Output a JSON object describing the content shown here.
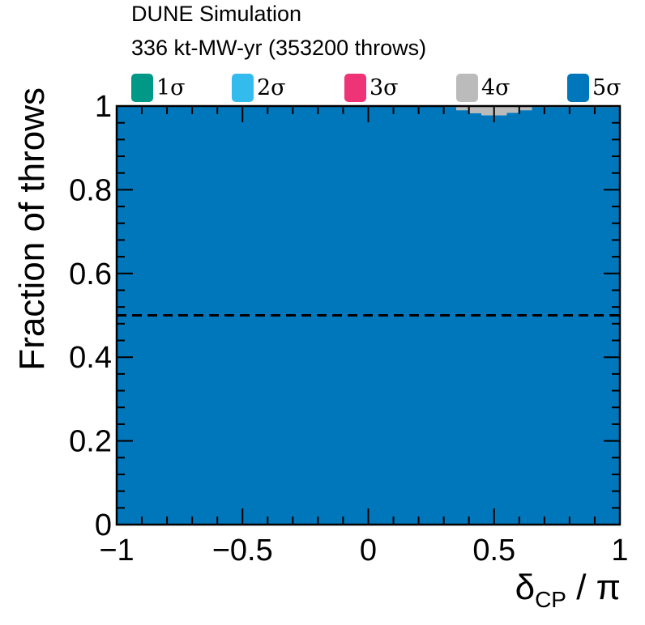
{
  "chart_data": {
    "type": "area",
    "header": {
      "experiment": "DUNE Simulation",
      "exposure": "336 kt-MW-yr (353200 throws)"
    },
    "xlabel": {
      "main": "δ",
      "sub": "CP",
      "suffix": " / π"
    },
    "ylabel": "Fraction of throws",
    "xlim": [
      -1,
      1
    ],
    "ylim": [
      0,
      1
    ],
    "xticks": [
      {
        "value": -1,
        "label": "−1"
      },
      {
        "value": -0.5,
        "label": "−0.5"
      },
      {
        "value": 0,
        "label": "0"
      },
      {
        "value": 0.5,
        "label": "0.5"
      },
      {
        "value": 1,
        "label": "1"
      }
    ],
    "yticks": [
      {
        "value": 0,
        "label": "0"
      },
      {
        "value": 0.2,
        "label": "0.2"
      },
      {
        "value": 0.4,
        "label": "0.4"
      },
      {
        "value": 0.6,
        "label": "0.6"
      },
      {
        "value": 0.8,
        "label": "0.8"
      },
      {
        "value": 1,
        "label": "1"
      }
    ],
    "reference_line": {
      "y": 0.5,
      "style": "dashed"
    },
    "legend_placement": "top, horizontal above plot",
    "legend": [
      {
        "label": "1σ",
        "color": "#009988"
      },
      {
        "label": "2σ",
        "color": "#33BBEE"
      },
      {
        "label": "3σ",
        "color": "#EE3377"
      },
      {
        "label": "4σ",
        "color": "#BBBBBB"
      },
      {
        "label": "5σ",
        "color": "#0077BB"
      }
    ],
    "x": [
      0.3,
      0.35,
      0.4,
      0.45,
      0.5,
      0.55,
      0.6,
      0.65
    ],
    "series": [
      {
        "name": "5σ",
        "color": "#0077BB",
        "x_start": -1,
        "x_end": 1,
        "default": 1.0,
        "values": [
          0.997,
          0.99,
          0.983,
          0.978,
          0.978,
          0.984,
          0.99,
          0.997
        ]
      },
      {
        "name": "4σ",
        "color": "#BBBBBB",
        "x_start": -1,
        "x_end": 1,
        "default": 0.0,
        "values": [
          0.003,
          0.01,
          0.017,
          0.022,
          0.022,
          0.016,
          0.01,
          0.003
        ]
      }
    ]
  }
}
